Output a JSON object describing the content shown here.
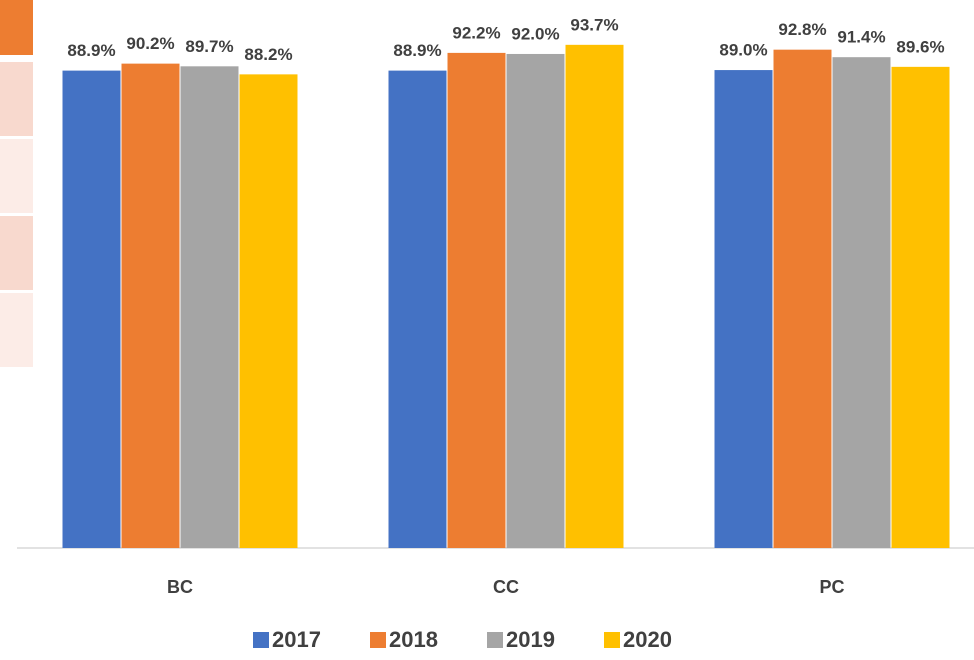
{
  "chart_data": {
    "type": "bar",
    "categories": [
      "BC",
      "CC",
      "PC"
    ],
    "series": [
      {
        "name": "2017",
        "color": "#4472c4",
        "values": [
          88.9,
          88.9,
          89.0
        ],
        "value_labels": [
          "88.9%",
          "88.9%",
          "89.0%"
        ]
      },
      {
        "name": "2018",
        "color": "#ed7d31",
        "values": [
          90.2,
          92.2,
          92.8
        ],
        "value_labels": [
          "90.2%",
          "92.2%",
          "92.8%"
        ]
      },
      {
        "name": "2019",
        "color": "#a5a5a5",
        "values": [
          89.7,
          92.0,
          91.4
        ],
        "value_labels": [
          "89.7%",
          "92.0%",
          "91.4%"
        ]
      },
      {
        "name": "2020",
        "color": "#ffc000",
        "values": [
          88.2,
          93.7,
          89.6
        ],
        "value_labels": [
          "88.2%",
          "93.7%",
          "89.6%"
        ]
      }
    ],
    "ylim": [
      0,
      100
    ],
    "legend": "bottom"
  }
}
